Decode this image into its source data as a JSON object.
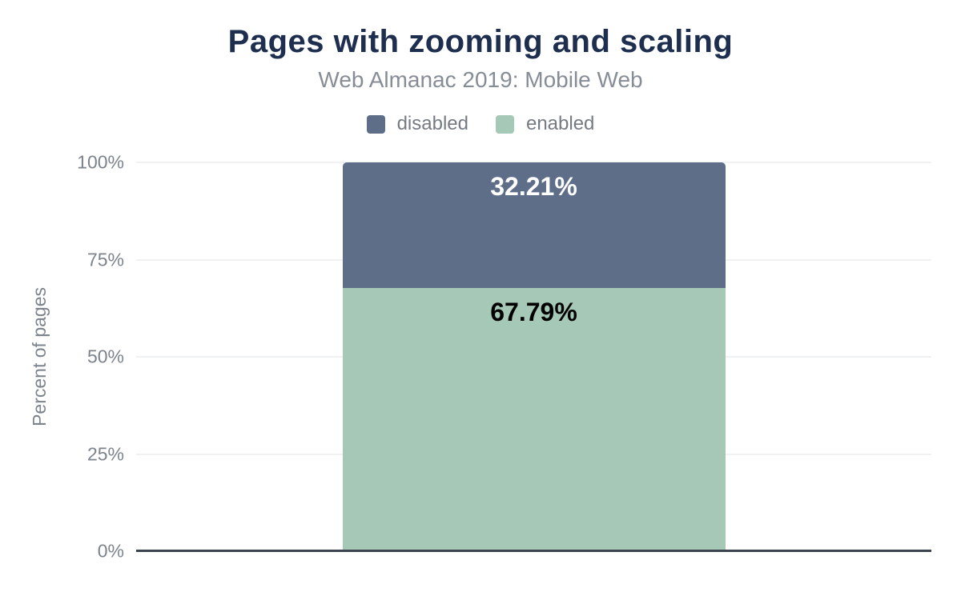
{
  "header": {
    "title": "Pages with zooming and scaling",
    "subtitle": "Web Almanac 2019: Mobile Web"
  },
  "legend": [
    {
      "label": "disabled",
      "color": "#5e6e89"
    },
    {
      "label": "enabled",
      "color": "#a6c9b7"
    }
  ],
  "chart_data": {
    "type": "bar",
    "stacked": true,
    "categories": [
      ""
    ],
    "series": [
      {
        "name": "disabled",
        "values": [
          32.21
        ],
        "label": "32.21%",
        "color": "#5e6e89",
        "label_color": "#ffffff"
      },
      {
        "name": "enabled",
        "values": [
          67.79
        ],
        "label": "67.79%",
        "color": "#a6c9b7",
        "label_color": "#000000"
      }
    ],
    "title": "Pages with zooming and scaling",
    "subtitle": "Web Almanac 2019: Mobile Web",
    "xlabel": "",
    "ylabel": "Percent of pages",
    "ylim": [
      0,
      100
    ],
    "ytick_values": [
      0,
      25,
      50,
      75,
      100
    ],
    "yticks": [
      "0%",
      "25%",
      "50%",
      "75%",
      "100%"
    ],
    "grid": true,
    "legend_position": "top"
  },
  "colors": {
    "title_text": "#1e2e4f",
    "muted_text": "#7d838d",
    "legend_text": "#767b83",
    "axis_line": "#3b434e",
    "gridline": "#f0f1f2",
    "background": "#ffffff"
  }
}
